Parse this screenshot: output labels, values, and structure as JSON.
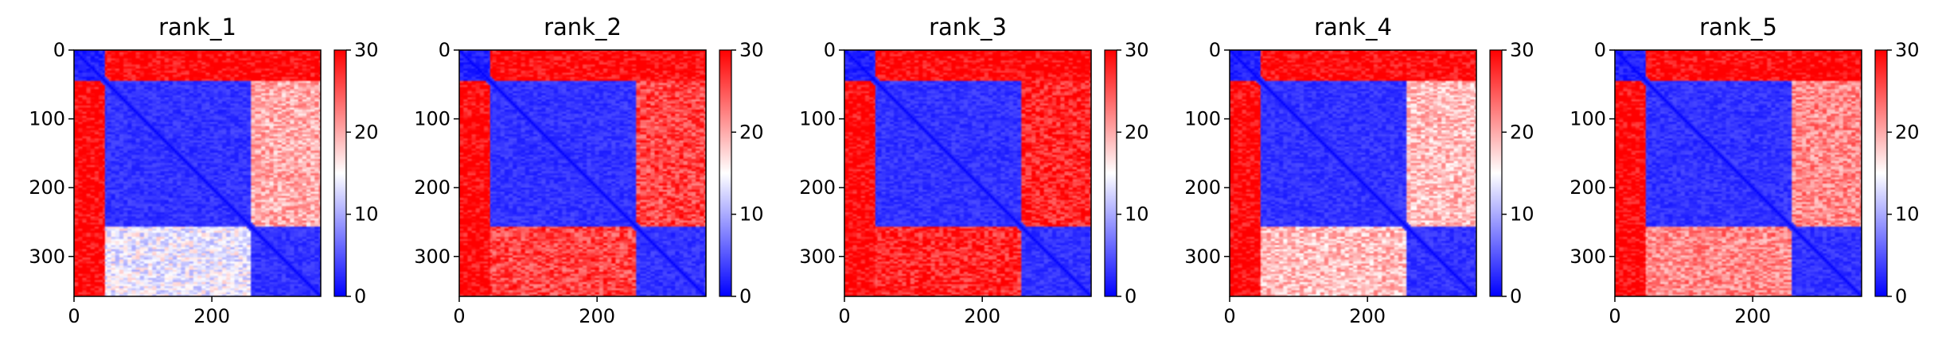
{
  "figure": {
    "n_residues": 358,
    "colormap": "bwr",
    "colors": {
      "low": "#0000ff",
      "mid": "#ffffff",
      "high": "#ff0000",
      "axis": "#000000"
    }
  },
  "chart_data": [
    {
      "type": "heatmap",
      "title": "rank_1",
      "xlabel": "",
      "ylabel": "",
      "xlim": [
        0,
        358
      ],
      "ylim": [
        358,
        0
      ],
      "x_ticks": [
        0,
        200
      ],
      "y_ticks": [
        0,
        100,
        200,
        300
      ],
      "colorbar": {
        "range": [
          0,
          30
        ],
        "ticks": [
          0,
          10,
          20,
          30
        ]
      },
      "domains": [
        [
          0,
          45
        ],
        [
          45,
          258
        ],
        [
          258,
          358
        ]
      ],
      "domain_block_values": [
        [
          2,
          30,
          30
        ],
        [
          30,
          3,
          20
        ],
        [
          30,
          14,
          3
        ]
      ]
    },
    {
      "type": "heatmap",
      "title": "rank_2",
      "xlabel": "",
      "ylabel": "",
      "xlim": [
        0,
        358
      ],
      "ylim": [
        358,
        0
      ],
      "x_ticks": [
        0,
        200
      ],
      "y_ticks": [
        0,
        100,
        200,
        300
      ],
      "colorbar": {
        "range": [
          0,
          30
        ],
        "ticks": [
          0,
          10,
          20,
          30
        ]
      },
      "domains": [
        [
          0,
          45
        ],
        [
          45,
          258
        ],
        [
          258,
          358
        ]
      ],
      "domain_block_values": [
        [
          2,
          30,
          30
        ],
        [
          30,
          3,
          26
        ],
        [
          30,
          26,
          3
        ]
      ]
    },
    {
      "type": "heatmap",
      "title": "rank_3",
      "xlabel": "",
      "ylabel": "",
      "xlim": [
        0,
        358
      ],
      "ylim": [
        358,
        0
      ],
      "x_ticks": [
        0,
        200
      ],
      "y_ticks": [
        0,
        100,
        200,
        300
      ],
      "colorbar": {
        "range": [
          0,
          30
        ],
        "ticks": [
          0,
          10,
          20,
          30
        ]
      },
      "domains": [
        [
          0,
          45
        ],
        [
          45,
          258
        ],
        [
          258,
          358
        ]
      ],
      "domain_block_values": [
        [
          2,
          30,
          30
        ],
        [
          30,
          3,
          28
        ],
        [
          30,
          28,
          3
        ]
      ]
    },
    {
      "type": "heatmap",
      "title": "rank_4",
      "xlabel": "",
      "ylabel": "",
      "xlim": [
        0,
        358
      ],
      "ylim": [
        358,
        0
      ],
      "x_ticks": [
        0,
        200
      ],
      "y_ticks": [
        0,
        100,
        200,
        300
      ],
      "colorbar": {
        "range": [
          0,
          30
        ],
        "ticks": [
          0,
          10,
          20,
          30
        ]
      },
      "domains": [
        [
          0,
          45
        ],
        [
          45,
          258
        ],
        [
          258,
          358
        ]
      ],
      "domain_block_values": [
        [
          2,
          30,
          30
        ],
        [
          30,
          3,
          19
        ],
        [
          30,
          19,
          3
        ]
      ]
    },
    {
      "type": "heatmap",
      "title": "rank_5",
      "xlabel": "",
      "ylabel": "",
      "xlim": [
        0,
        358
      ],
      "ylim": [
        358,
        0
      ],
      "x_ticks": [
        0,
        200
      ],
      "y_ticks": [
        0,
        100,
        200,
        300
      ],
      "colorbar": {
        "range": [
          0,
          30
        ],
        "ticks": [
          0,
          10,
          20,
          30
        ]
      },
      "domains": [
        [
          0,
          45
        ],
        [
          45,
          258
        ],
        [
          258,
          358
        ]
      ],
      "domain_block_values": [
        [
          2,
          30,
          30
        ],
        [
          30,
          3,
          22
        ],
        [
          30,
          22,
          3
        ]
      ]
    }
  ]
}
